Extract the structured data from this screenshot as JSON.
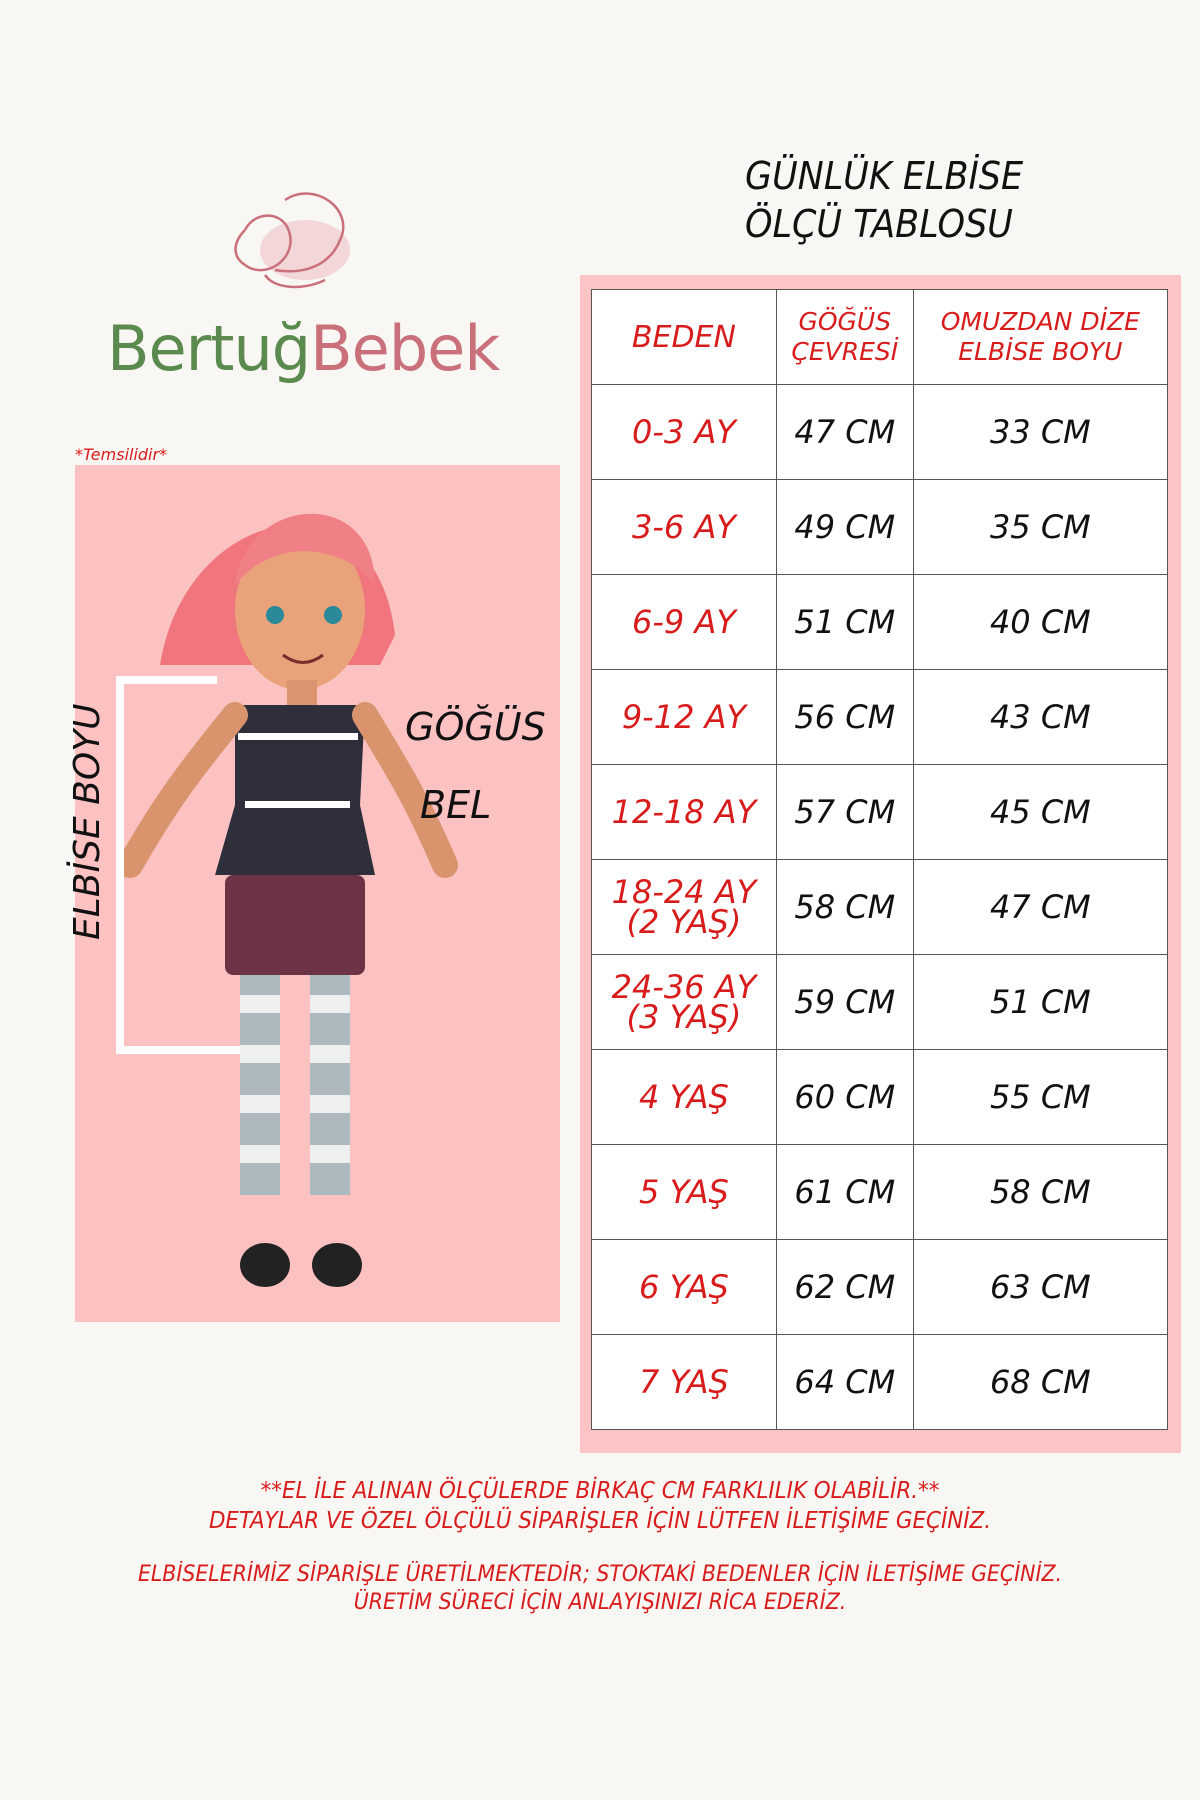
{
  "brand": {
    "name_part1": "Bertuğ",
    "name_part2": "Bebek",
    "colors": {
      "green": "#5b8a4e",
      "pink": "#c9707a"
    }
  },
  "title": {
    "line1": "GÜNLÜK ELBİSE",
    "line2": "ÖLÇÜ TABLOSU"
  },
  "illustration": {
    "caption": "*Temsilidir*",
    "labels": {
      "dress_length": "ELBİSE BOYU",
      "chest": "GÖĞÜS",
      "waist": "BEL"
    }
  },
  "table": {
    "headers": {
      "size": "BEDEN",
      "chest_line1": "GÖĞÜS",
      "chest_line2": "ÇEVRESİ",
      "length_line1": "OMUZDAN DİZE",
      "length_line2": "ELBİSE BOYU"
    },
    "rows": [
      {
        "size": "0-3 AY",
        "chest": "47 CM",
        "length": "33 CM"
      },
      {
        "size": "3-6 AY",
        "chest": "49 CM",
        "length": "35 CM"
      },
      {
        "size": "6-9 AY",
        "chest": "51 CM",
        "length": "40 CM"
      },
      {
        "size": "9-12 AY",
        "chest": "56 CM",
        "length": "43 CM"
      },
      {
        "size": "12-18 AY",
        "chest": "57 CM",
        "length": "45 CM"
      },
      {
        "size": "18-24 AY",
        "size2": "(2 YAŞ)",
        "chest": "58 CM",
        "length": "47 CM"
      },
      {
        "size": "24-36 AY",
        "size2": "(3 YAŞ)",
        "chest": "59 CM",
        "length": "51 CM"
      },
      {
        "size": "4 YAŞ",
        "chest": "60 CM",
        "length": "55 CM"
      },
      {
        "size": "5 YAŞ",
        "chest": "61 CM",
        "length": "58 CM"
      },
      {
        "size": "6 YAŞ",
        "chest": "62 CM",
        "length": "63 CM"
      },
      {
        "size": "7 YAŞ",
        "chest": "64 CM",
        "length": "68 CM"
      }
    ]
  },
  "notes": [
    "**EL İLE ALINAN ÖLÇÜLERDE BİRKAÇ CM FARKLILIK OLABİLİR.**",
    "DETAYLAR VE ÖZEL ÖLÇÜLÜ SİPARİŞLER İÇİN LÜTFEN İLETİŞİME GEÇİNİZ.",
    "ELBİSELERİMİZ SİPARİŞLE ÜRETİLMEKTEDİR; STOKTAKİ BEDENLER İÇİN İLETİŞİME GEÇİNİZ.",
    "ÜRETİM SÜRECİ İÇİN ANLAYIŞINIZI RİCA EDERİZ."
  ]
}
